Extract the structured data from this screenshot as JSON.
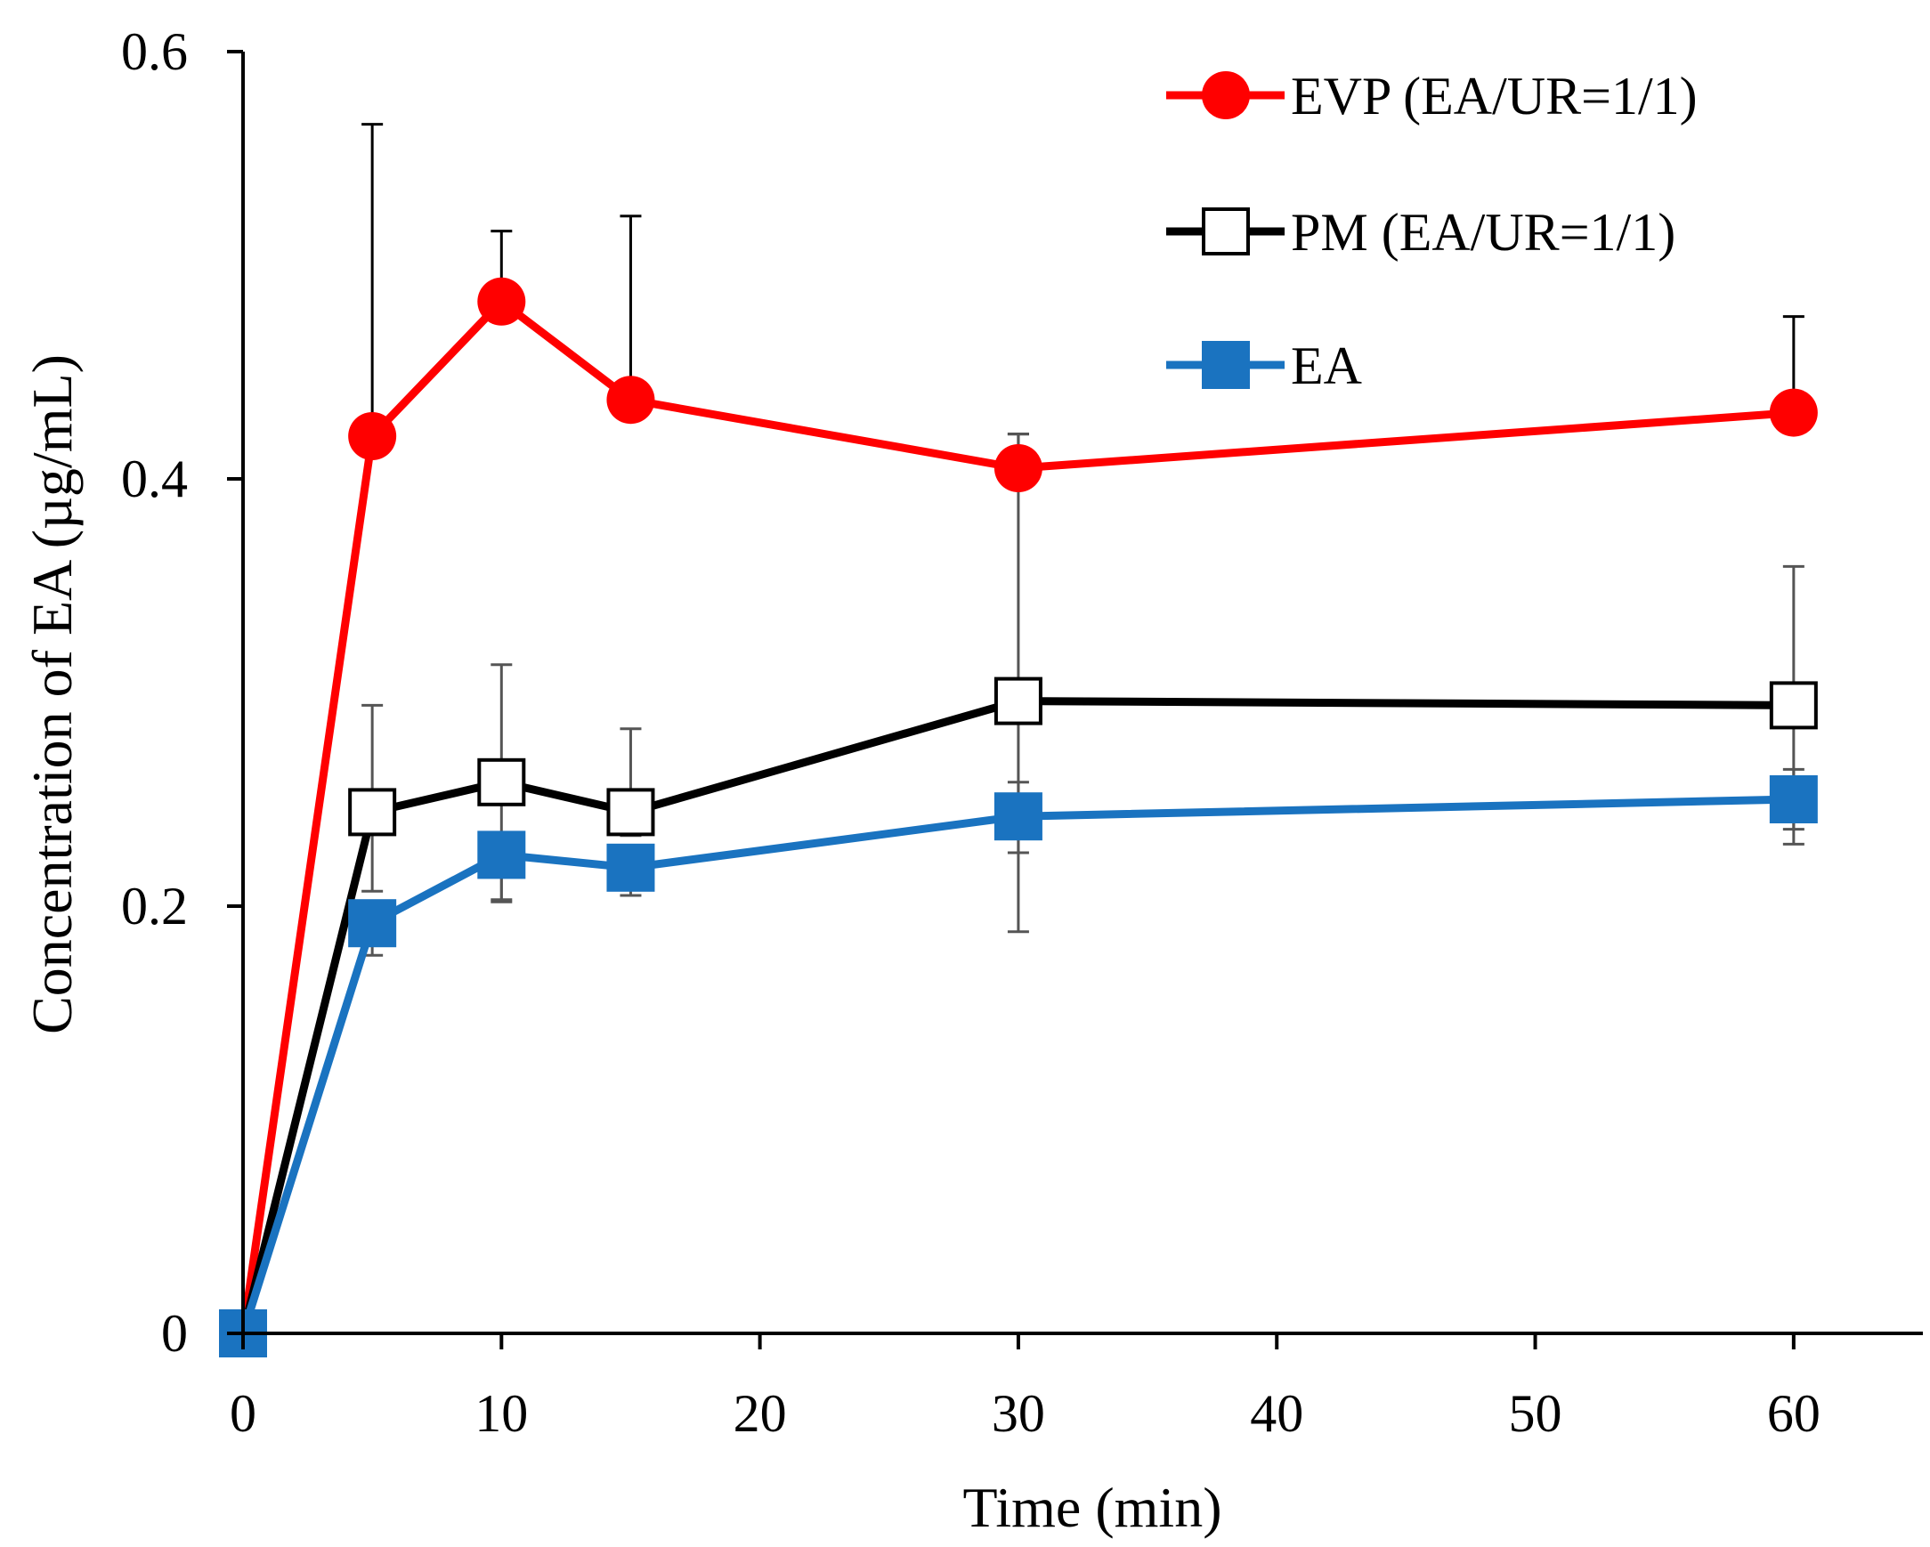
{
  "chart_data": {
    "type": "line",
    "title": "",
    "xlabel": "Time (min)",
    "ylabel": "Concentration of EA (µg/mL)",
    "xlim": [
      0,
      65
    ],
    "ylim": [
      0,
      0.6
    ],
    "x_ticks": [
      0,
      10,
      20,
      30,
      40,
      50,
      60
    ],
    "x_tick_labels": [
      "0",
      "10",
      "20",
      "30",
      "40",
      "50",
      "60"
    ],
    "y_ticks": [
      0,
      0.2,
      0.4,
      0.6
    ],
    "y_tick_labels": [
      "0",
      "0.2",
      "0.4",
      "0.6"
    ],
    "grid": false,
    "legend_position": "top-right",
    "x": [
      0,
      5,
      10,
      15,
      30,
      60
    ],
    "series": [
      {
        "name": "EVP (EA/UR=1/1)",
        "color": "#ff0000",
        "marker": "circle",
        "values": [
          0,
          0.42,
          0.483,
          0.437,
          0.405,
          0.431
        ],
        "err_plus": [
          0,
          0.146,
          0.033,
          0.086,
          0.016,
          0.045
        ],
        "err_minus": [
          0,
          0,
          0,
          0,
          0,
          0
        ],
        "err_color": "#000000"
      },
      {
        "name": "PM (EA/UR=1/1)",
        "color": "#000000",
        "marker": "square-open",
        "values": [
          0,
          0.244,
          0.258,
          0.244,
          0.296,
          0.294
        ],
        "err_plus": [
          0,
          0.05,
          0.055,
          0.039,
          0.125,
          0.065
        ],
        "err_minus": [
          0,
          0.037,
          0.056,
          0.011,
          0.108,
          0.065
        ],
        "err_color": "#555555"
      },
      {
        "name": "EA",
        "color": "#1a73c0",
        "marker": "square",
        "values": [
          0,
          0.192,
          0.224,
          0.218,
          0.242,
          0.25
        ],
        "err_plus": [
          0,
          0,
          0,
          0,
          0.016,
          0.014
        ],
        "err_minus": [
          0,
          0.015,
          0.021,
          0.013,
          0.017,
          0.014
        ],
        "err_color": "#555555"
      }
    ]
  }
}
